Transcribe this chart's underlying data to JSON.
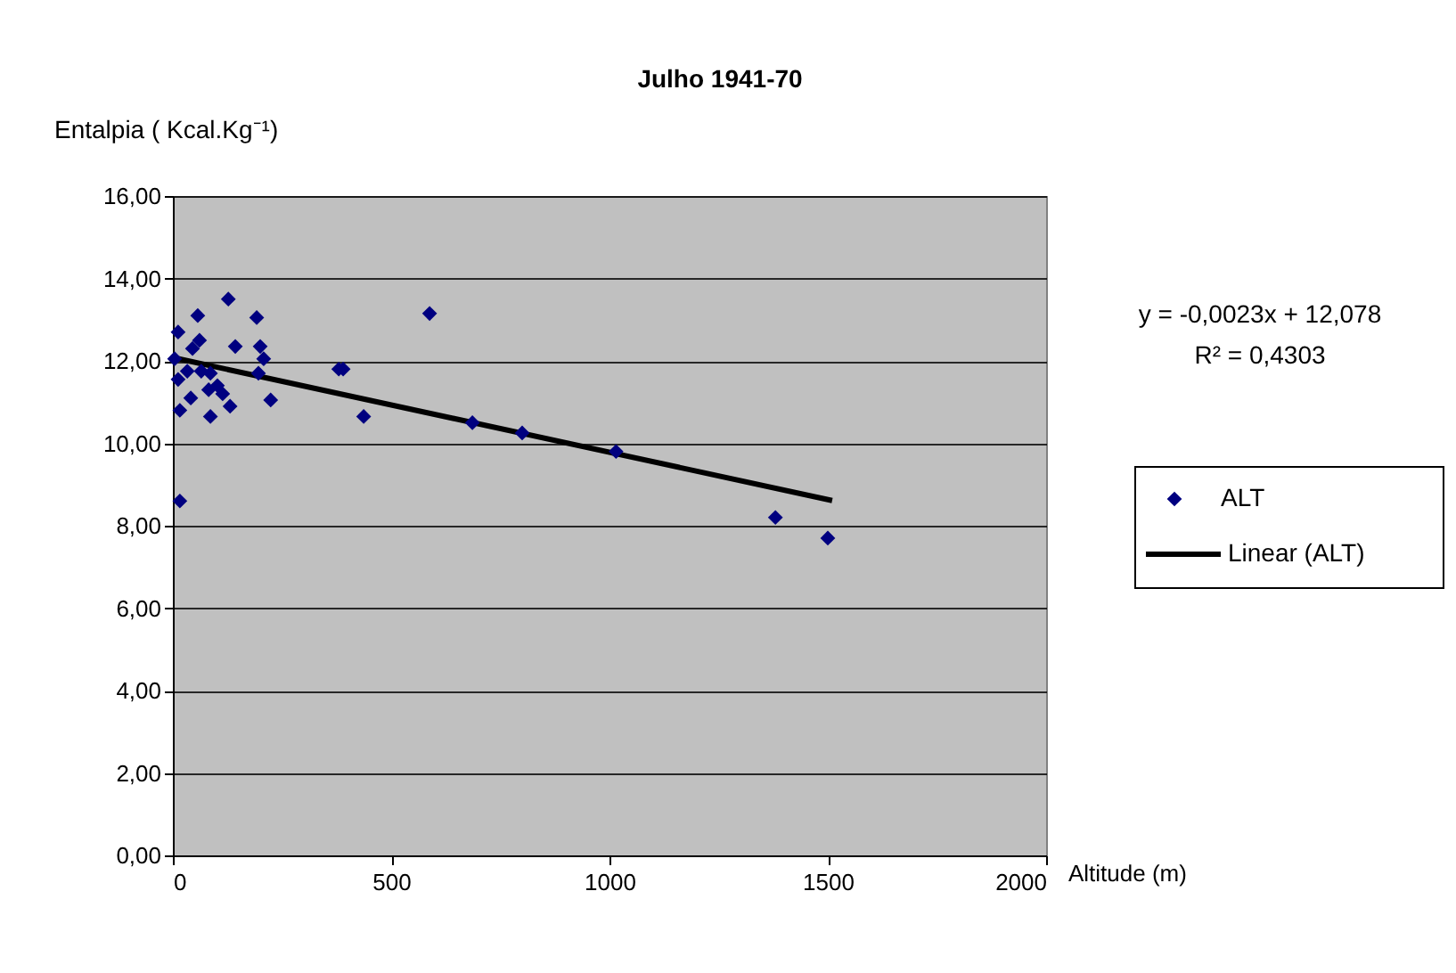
{
  "chart_data": {
    "type": "scatter",
    "title": "Julho 1941-70",
    "xlabel": "Altitude (m)",
    "ylabel": "Entalpia ( Kcal.Kg⁻¹)",
    "xlim": [
      0,
      2000
    ],
    "xticks": [
      0,
      500,
      1000,
      1500,
      2000
    ],
    "ylim": [
      0,
      16
    ],
    "yticks": [
      {
        "value": 0,
        "label": "0,00"
      },
      {
        "value": 2,
        "label": "2,00"
      },
      {
        "value": 4,
        "label": "4,00"
      },
      {
        "value": 6,
        "label": "6,00"
      },
      {
        "value": 8,
        "label": "8,00"
      },
      {
        "value": 10,
        "label": "10,00"
      },
      {
        "value": 12,
        "label": "12,00"
      },
      {
        "value": 14,
        "label": "14,00"
      },
      {
        "value": 16,
        "label": "16,00"
      }
    ],
    "grid": "y",
    "legend": "right",
    "annotations": [
      "y = -0,0023x + 12,078",
      "R² = 0,4303"
    ],
    "series": [
      {
        "name": "ALT",
        "marker": "diamond",
        "color": "#000080",
        "x": [
          127,
          57,
          192,
          588,
          143,
          200,
          208,
          196,
          224,
          380,
          390,
          437,
          16,
          16,
          86,
          131,
          12,
          61,
          4,
          12,
          41,
          82,
          102,
          65,
          33,
          45,
          86,
          114,
          686,
          800,
          1015,
          1380,
          1500
        ],
        "values": [
          13.5,
          13.1,
          13.05,
          13.15,
          12.35,
          12.35,
          12.05,
          11.7,
          11.05,
          11.8,
          11.8,
          10.65,
          8.6,
          10.8,
          10.65,
          10.9,
          12.7,
          12.5,
          12.05,
          11.55,
          11.1,
          11.3,
          11.4,
          11.75,
          11.75,
          12.3,
          11.7,
          11.2,
          10.5,
          10.25,
          9.8,
          8.2,
          7.7
        ]
      },
      {
        "name": "Linear (ALT)",
        "type": "line",
        "marker": "none",
        "color": "#000000",
        "line_style": "solid",
        "x": [
          0,
          1510
        ],
        "values": [
          12.08,
          8.61
        ]
      }
    ]
  }
}
